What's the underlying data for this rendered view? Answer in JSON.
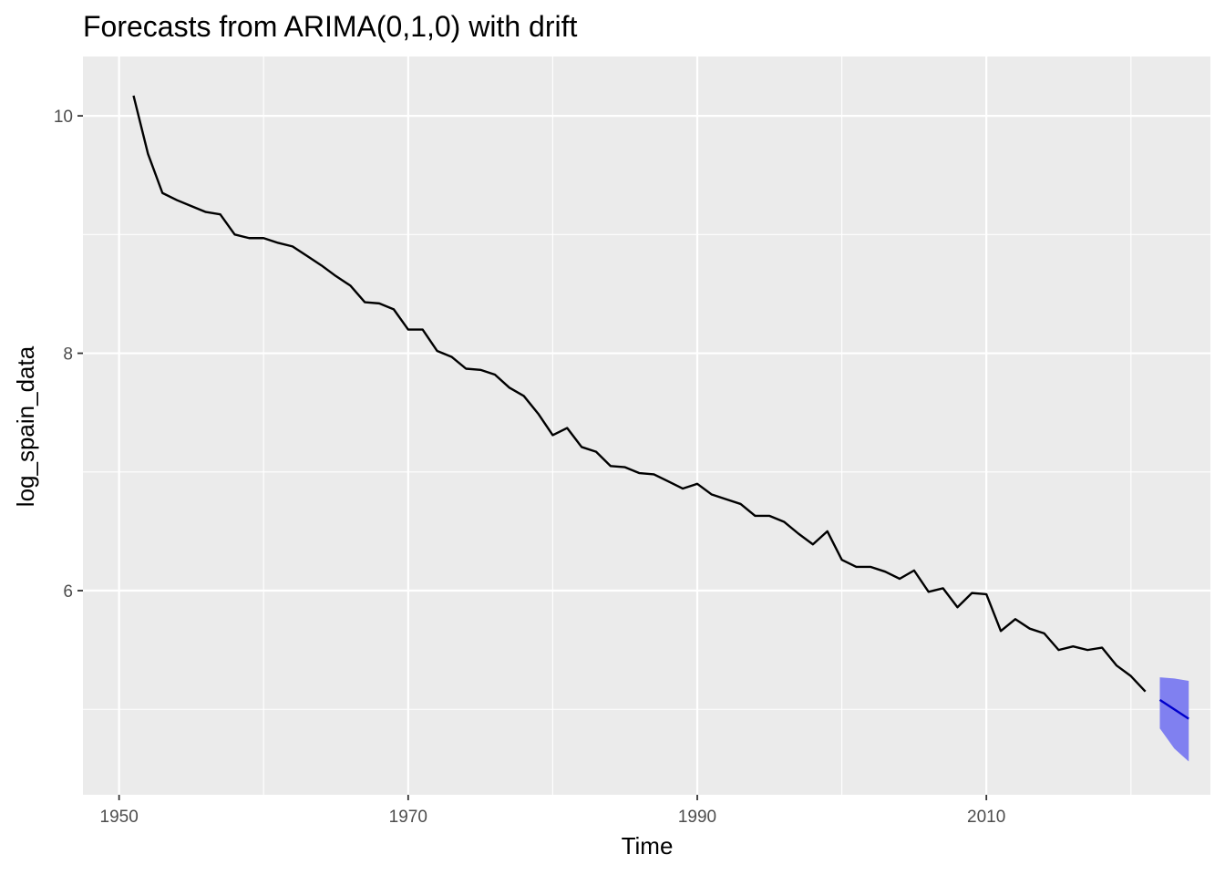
{
  "chart_data": {
    "type": "line",
    "title": "Forecasts from ARIMA(0,1,0) with drift",
    "xlabel": "Time",
    "ylabel": "log_spain_data",
    "xlim": [
      1947.5,
      2025.5
    ],
    "ylim": [
      4.28,
      10.5
    ],
    "x_ticks": [
      1950,
      1970,
      1990,
      2010
    ],
    "x_tick_labels": [
      "1950",
      "1970",
      "1990",
      "2010"
    ],
    "y_ticks": [
      6,
      8,
      10
    ],
    "y_tick_labels": [
      "6",
      "8",
      "10"
    ],
    "grid": true,
    "colors": {
      "panel_background": "#ebebeb",
      "grid_line": "#ffffff",
      "series_line": "#000000",
      "forecast_line": "#0000cc",
      "forecast_band": "#8080f0"
    },
    "series": [
      {
        "x": [
          1951,
          1952,
          1953,
          1954,
          1955,
          1956,
          1957,
          1958,
          1959,
          1960,
          1961,
          1962,
          1963,
          1964,
          1965,
          1966,
          1967,
          1968,
          1969,
          1970,
          1971,
          1972,
          1973,
          1974,
          1975,
          1976,
          1977,
          1978,
          1979,
          1980,
          1981,
          1982,
          1983,
          1984,
          1985,
          1986,
          1987,
          1988,
          1989,
          1990,
          1991,
          1992,
          1993,
          1994,
          1995,
          1996,
          1997,
          1998,
          1999,
          2000,
          2001,
          2002,
          2003,
          2004,
          2005,
          2006,
          2007,
          2008,
          2009,
          2010,
          2011,
          2012,
          2013,
          2014,
          2015,
          2016,
          2017,
          2018,
          2019,
          2020,
          2021
        ],
        "values": [
          10.17,
          9.68,
          9.35,
          9.29,
          9.24,
          9.19,
          9.17,
          9.0,
          8.97,
          8.97,
          8.93,
          8.9,
          8.82,
          8.74,
          8.65,
          8.57,
          8.43,
          8.42,
          8.37,
          8.2,
          8.2,
          8.02,
          7.97,
          7.87,
          7.86,
          7.82,
          7.71,
          7.64,
          7.49,
          7.31,
          7.37,
          7.21,
          7.17,
          7.05,
          7.04,
          6.99,
          6.98,
          6.92,
          6.86,
          6.9,
          6.81,
          6.77,
          6.73,
          6.63,
          6.63,
          6.58,
          6.48,
          6.39,
          6.5,
          6.26,
          6.2,
          6.2,
          6.16,
          6.1,
          6.17,
          5.99,
          6.02,
          5.86,
          5.98,
          5.97,
          5.66,
          5.76,
          5.68,
          5.64,
          5.5,
          5.53,
          5.5,
          5.52,
          5.37,
          5.28,
          5.15
        ]
      }
    ],
    "forecast": {
      "x": [
        2022,
        2023,
        2024
      ],
      "values": [
        5.08,
        5.0,
        4.92
      ],
      "upper": [
        5.27,
        5.26,
        5.24
      ],
      "lower": [
        4.84,
        4.67,
        4.56
      ]
    }
  }
}
